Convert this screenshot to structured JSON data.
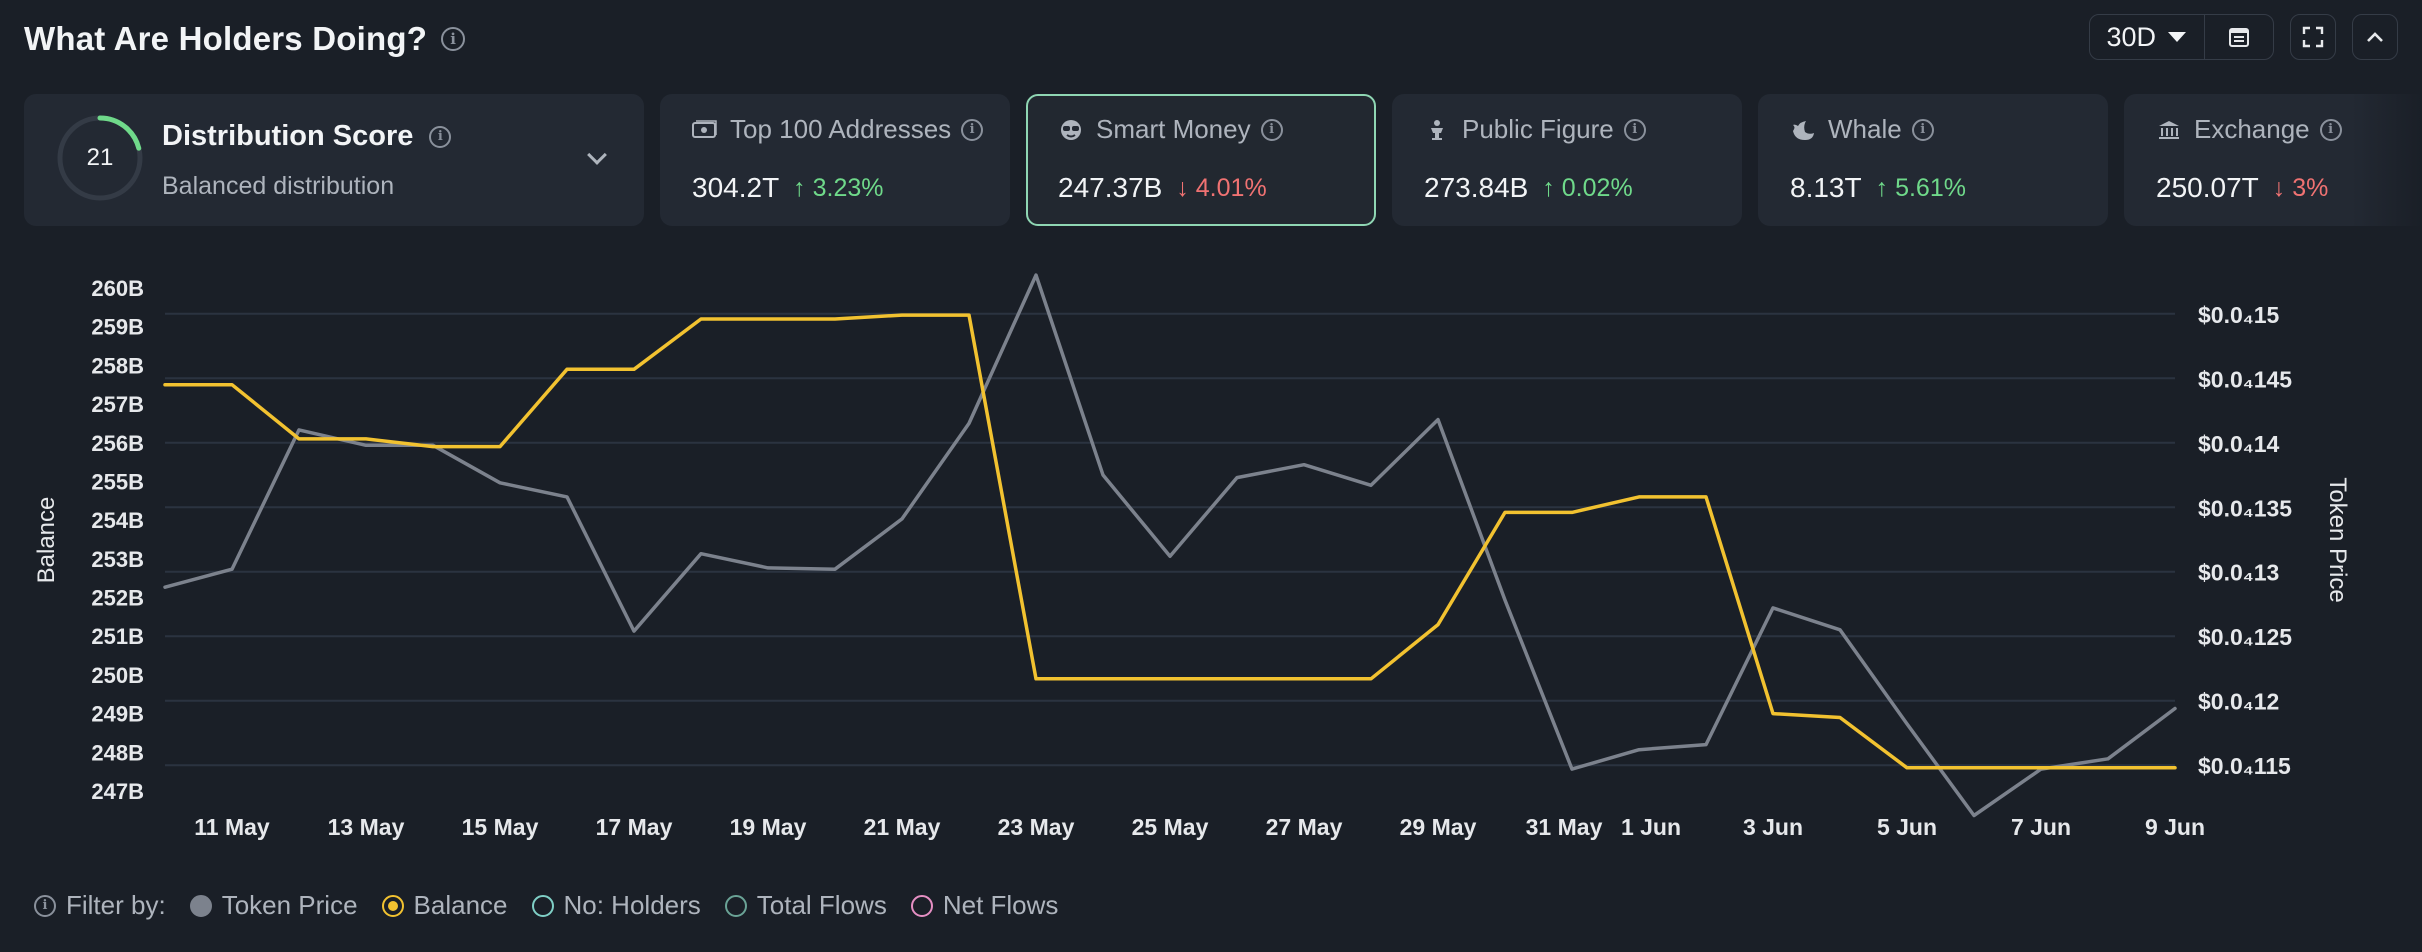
{
  "header": {
    "title": "What Are Holders Doing?",
    "period": "30D"
  },
  "distribution": {
    "score": "21",
    "score_value": 21,
    "title": "Distribution Score",
    "subtitle": "Balanced distribution"
  },
  "cards": [
    {
      "title": "Top 100 Addresses",
      "icon": "money-icon",
      "value": "304.2T",
      "arrow": "↑",
      "change": "3.23%",
      "direction": "up"
    },
    {
      "title": "Smart Money",
      "icon": "sunglasses-icon",
      "value": "247.37B",
      "arrow": "↓",
      "change": "4.01%",
      "direction": "down"
    },
    {
      "title": "Public Figure",
      "icon": "podium-icon",
      "value": "273.84B",
      "arrow": "↑",
      "change": "0.02%",
      "direction": "up"
    },
    {
      "title": "Whale",
      "icon": "whale-icon",
      "value": "8.13T",
      "arrow": "↑",
      "change": "5.61%",
      "direction": "up"
    },
    {
      "title": "Exchange",
      "icon": "bank-icon",
      "value": "250.07T",
      "arrow": "↓",
      "change": "3%",
      "direction": "down"
    }
  ],
  "colors": {
    "balance": "#f2c230",
    "token_price": "#7c828d",
    "up": "#6fd98a",
    "down": "#f07272",
    "grid": "#2b3340"
  },
  "chart_data": {
    "type": "line",
    "xlabel": "",
    "ylabel": "Balance",
    "y2label": "Token Price",
    "x_ticks": [
      "11 May",
      "13 May",
      "15 May",
      "17 May",
      "19 May",
      "21 May",
      "23 May",
      "25 May",
      "27 May",
      "29 May",
      "31 May",
      "1 Jun",
      "3 Jun",
      "5 Jun",
      "7 Jun",
      "9 Jun"
    ],
    "y_ticks": [
      "260B",
      "259B",
      "258B",
      "257B",
      "256B",
      "255B",
      "254B",
      "253B",
      "252B",
      "251B",
      "250B",
      "249B",
      "248B",
      "247B"
    ],
    "y2_ticks": [
      "$0.0₄15",
      "$0.0₄145",
      "$0.0₄14",
      "$0.0₄135",
      "$0.0₄13",
      "$0.0₄125",
      "$0.0₄12",
      "$0.0₄115"
    ],
    "ylim": [
      247,
      260
    ],
    "y2lim": [
      1.13e-05,
      1.52e-05
    ],
    "grid": true,
    "x": [
      "10 May",
      "11 May",
      "12 May",
      "13 May",
      "14 May",
      "15 May",
      "16 May",
      "17 May",
      "18 May",
      "19 May",
      "20 May",
      "21 May",
      "22 May",
      "23 May",
      "24 May",
      "25 May",
      "26 May",
      "27 May",
      "28 May",
      "29 May",
      "30 May",
      "31 May",
      "1 Jun",
      "2 Jun",
      "3 Jun",
      "4 Jun",
      "5 Jun",
      "6 Jun",
      "7 Jun",
      "8 Jun",
      "9 Jun"
    ],
    "series": [
      {
        "name": "Balance",
        "axis": "left",
        "values": [
          257.5,
          257.5,
          256.1,
          256.1,
          255.9,
          255.9,
          257.9,
          257.9,
          259.2,
          259.2,
          259.2,
          259.3,
          259.3,
          249.9,
          249.9,
          249.9,
          249.9,
          249.9,
          249.9,
          251.3,
          254.2,
          254.2,
          254.6,
          254.6,
          249.0,
          248.9,
          247.6,
          247.6,
          247.6,
          247.6,
          247.6
        ]
      },
      {
        "name": "Token Price",
        "axis": "right",
        "values": [
          1.288e-05,
          1.302e-05,
          1.41e-05,
          1.398e-05,
          1.398e-05,
          1.369e-05,
          1.358e-05,
          1.254e-05,
          1.314e-05,
          1.303e-05,
          1.302e-05,
          1.341e-05,
          1.415e-05,
          1.53e-05,
          1.375e-05,
          1.312e-05,
          1.373e-05,
          1.383e-05,
          1.367e-05,
          1.418e-05,
          1.278e-05,
          1.147e-05,
          1.162e-05,
          1.166e-05,
          1.272e-05,
          1.255e-05,
          1.182e-05,
          1.111e-05,
          1.147e-05,
          1.155e-05,
          1.194e-05
        ]
      }
    ]
  },
  "legend": {
    "filter_label": "Filter by:",
    "items": [
      {
        "label": "Token Price",
        "color": "#7c828d",
        "fill": true,
        "checked": false
      },
      {
        "label": "Balance",
        "color": "#f2c230",
        "fill": false,
        "checked": true
      },
      {
        "label": "No: Holders",
        "color": "#7fcfc6",
        "fill": false,
        "checked": false
      },
      {
        "label": "Total Flows",
        "color": "#6aa396",
        "fill": false,
        "checked": false
      },
      {
        "label": "Net Flows",
        "color": "#e58fc3",
        "fill": false,
        "checked": false
      }
    ]
  }
}
